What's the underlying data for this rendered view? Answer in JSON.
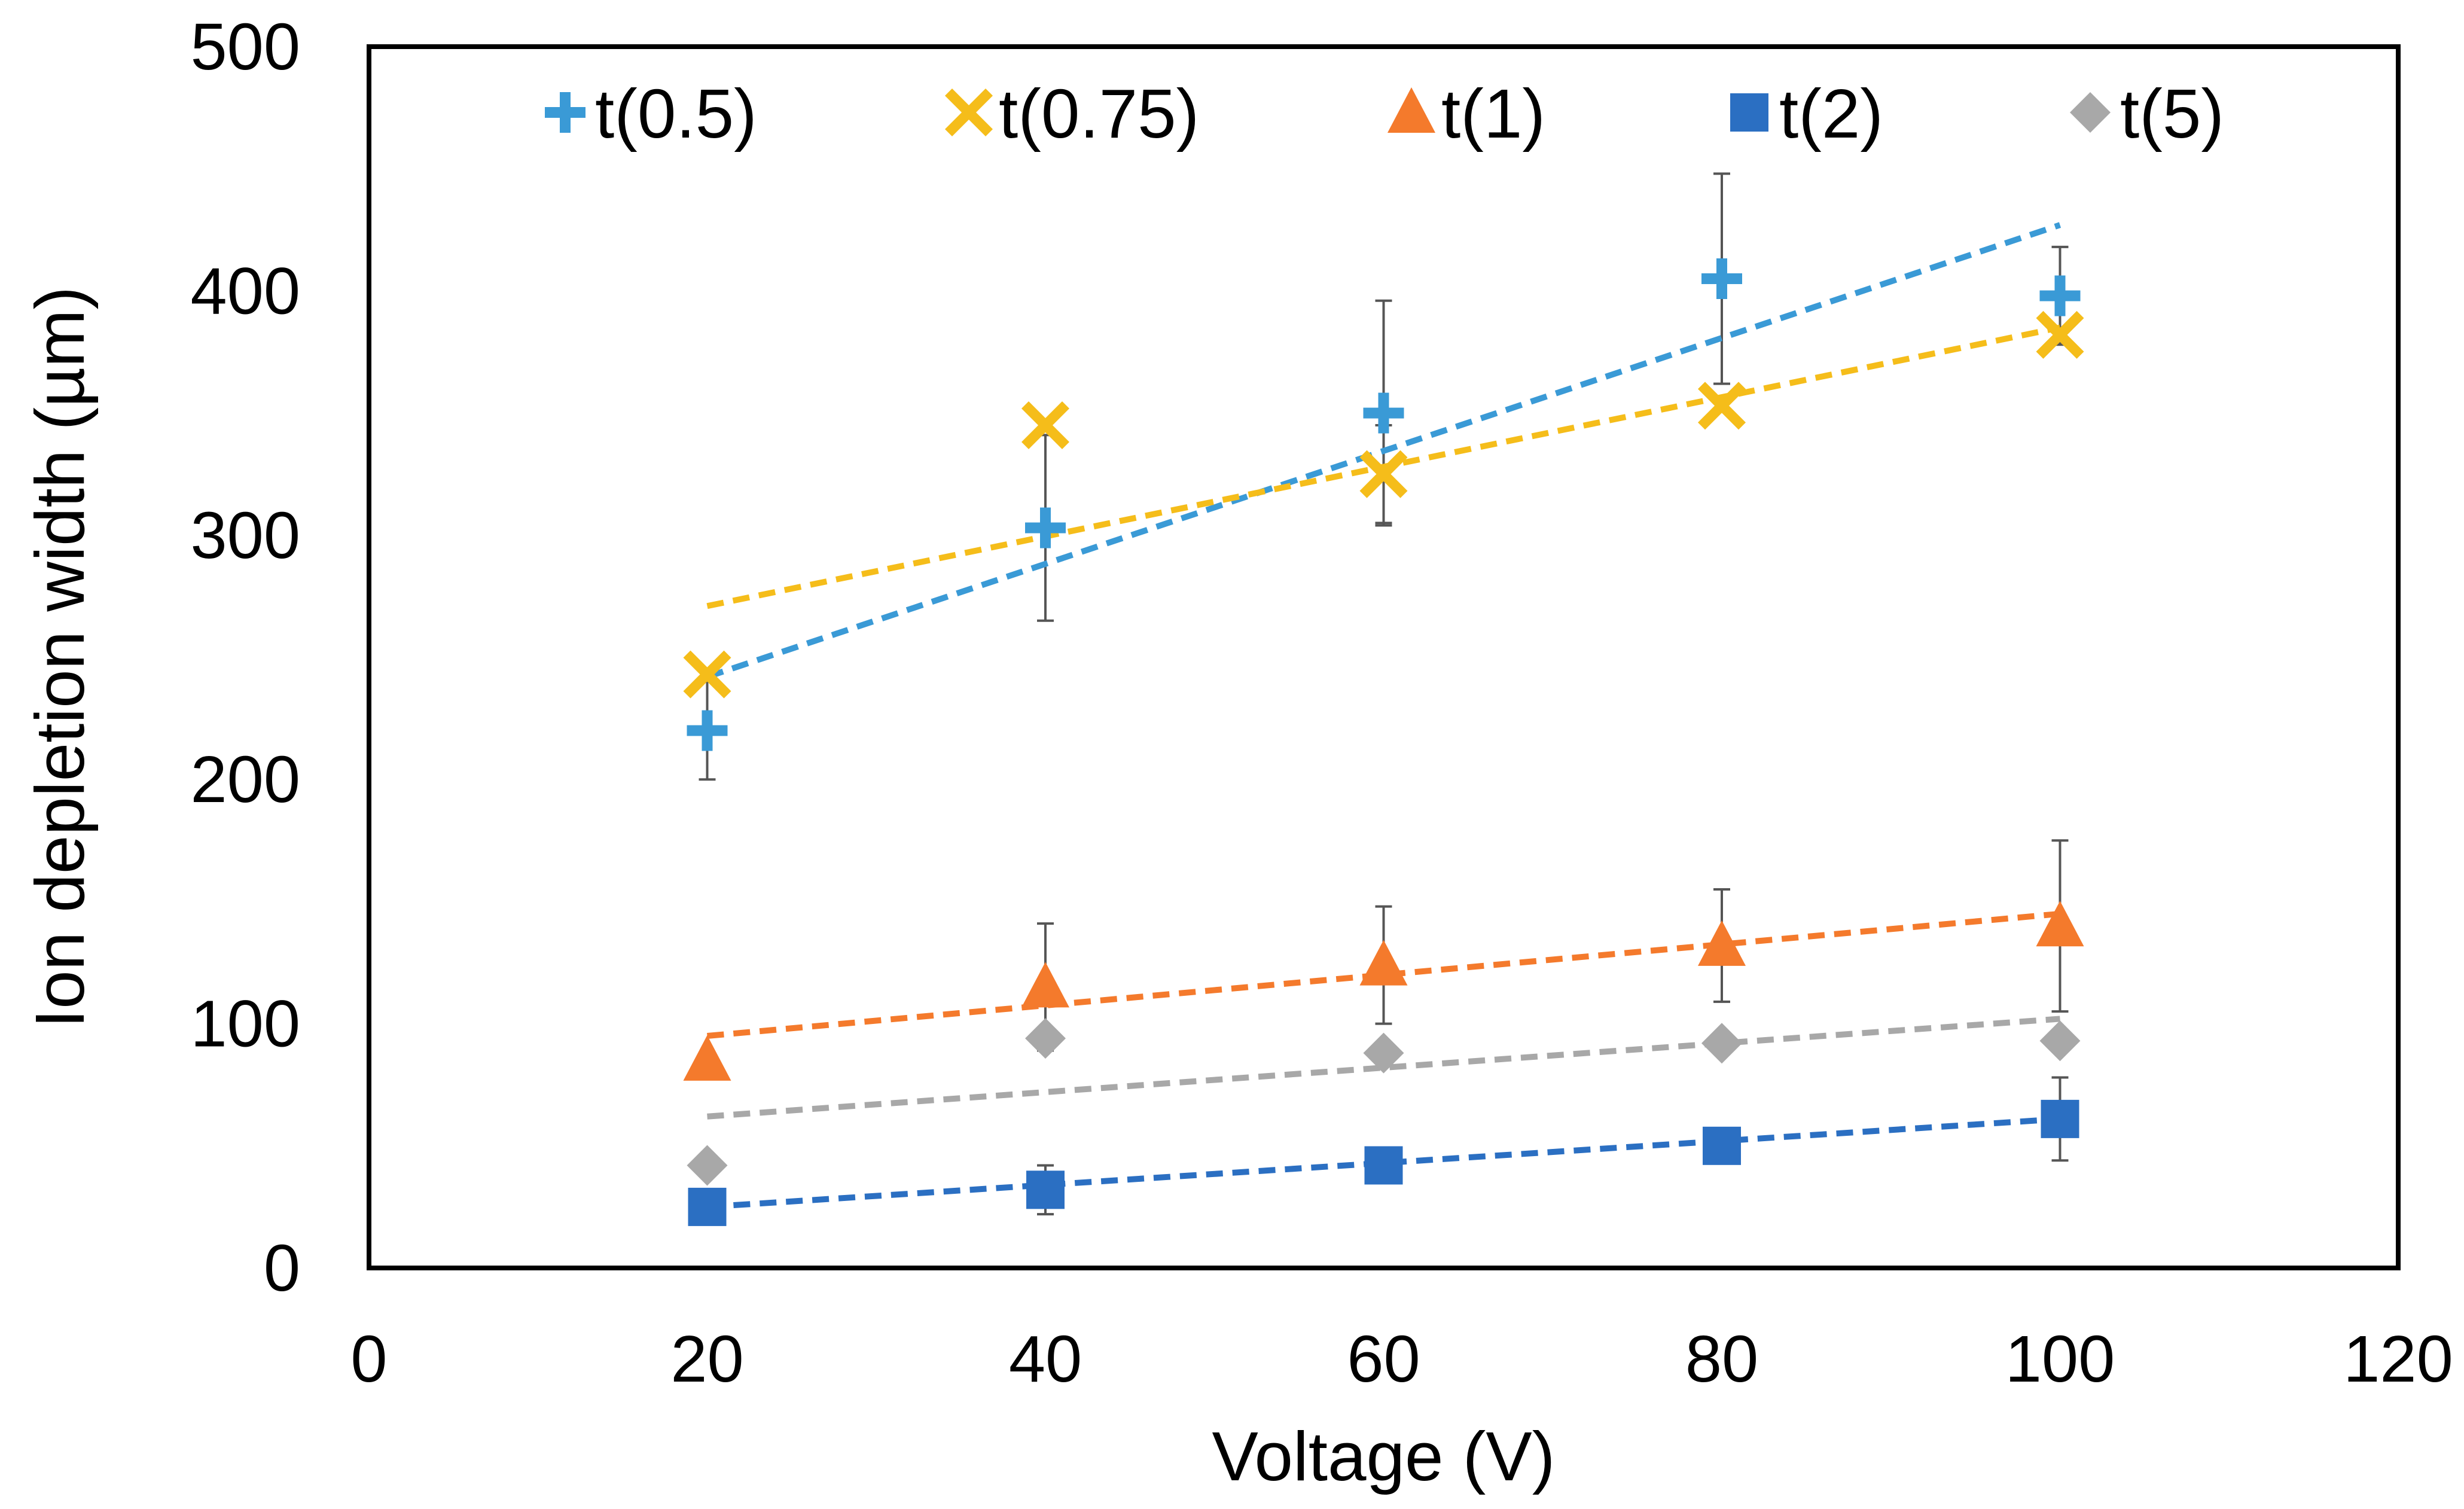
{
  "chart_data": {
    "type": "scatter",
    "title": "",
    "xlabel": "Voltage (V)",
    "ylabel": "Ion depletion width (µm)",
    "xlim": [
      0,
      120
    ],
    "ylim": [
      0,
      500
    ],
    "xticks": [
      0,
      20,
      40,
      60,
      80,
      100,
      120
    ],
    "yticks": [
      0,
      100,
      200,
      300,
      400,
      500
    ],
    "xtick_labels": [
      "0",
      "20",
      "40",
      "60",
      "80",
      "100",
      "120"
    ],
    "ytick_labels": [
      "0",
      "100",
      "200",
      "300",
      "400",
      "500"
    ],
    "grid": false,
    "legend_position": "top",
    "series": [
      {
        "name": "t(0.5)",
        "marker": "plus",
        "color": "#3a9ad6",
        "x": [
          20,
          40,
          60,
          80,
          100
        ],
        "y": [
          220,
          303,
          350,
          405,
          398
        ],
        "error": [
          20,
          38,
          46,
          43,
          20
        ],
        "trend": [
          242,
          427
        ]
      },
      {
        "name": "t(0.75)",
        "marker": "x",
        "color": "#f5bd1a",
        "x": [
          20,
          40,
          60,
          80,
          100
        ],
        "y": [
          243,
          345,
          325,
          353,
          382
        ],
        "error": [
          0,
          0,
          20,
          0,
          0
        ],
        "trend": [
          271,
          385
        ]
      },
      {
        "name": "t(1)",
        "marker": "triangle",
        "color": "#f47a2c",
        "x": [
          20,
          40,
          60,
          80,
          100
        ],
        "y": [
          85,
          115,
          124,
          132,
          140
        ],
        "error": [
          0,
          26,
          24,
          23,
          35
        ],
        "trend": [
          95,
          145
        ]
      },
      {
        "name": "t(2)",
        "marker": "square",
        "color": "#2b6fc2",
        "x": [
          20,
          40,
          60,
          80,
          100
        ],
        "y": [
          25,
          32,
          42,
          50,
          61
        ],
        "error": [
          0,
          10,
          0,
          0,
          17
        ],
        "trend": [
          25,
          61
        ]
      },
      {
        "name": "t(5)",
        "marker": "diamond",
        "color": "#a8a8a8",
        "x": [
          20,
          40,
          60,
          80,
          100
        ],
        "y": [
          42,
          94,
          88,
          92,
          93
        ],
        "error": [
          0,
          0,
          0,
          0,
          0
        ],
        "trend": [
          62,
          102
        ]
      }
    ]
  }
}
